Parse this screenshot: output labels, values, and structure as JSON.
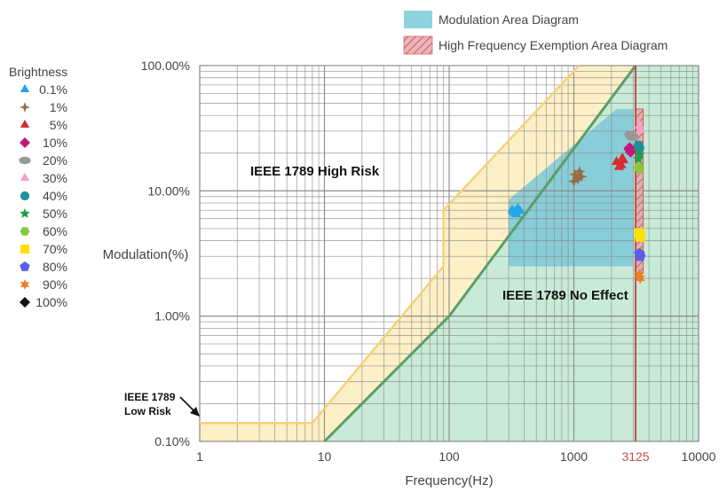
{
  "chart_data": {
    "type": "scatter",
    "x_axis": {
      "label": "Frequency(Hz)",
      "scale": "log",
      "range": [
        1,
        10000
      ],
      "ticks": [
        "1",
        "10",
        "100",
        "1000",
        "3125",
        "10000"
      ],
      "highlight_tick": "3125"
    },
    "y_axis": {
      "label": "Modulation(%)",
      "scale": "log",
      "range_percent": [
        0.1,
        100
      ],
      "ticks": [
        "0.10%",
        "1.00%",
        "10.00%",
        "100.00%"
      ]
    },
    "grid": true,
    "legend": {
      "position": "top-right",
      "items": [
        {
          "label": "Modulation Area Diagram",
          "color": "#8fd3df"
        },
        {
          "label": "High Frequency Exemption Area Diagram",
          "color": "#e8a0a8"
        }
      ]
    },
    "zones": {
      "high_risk": {
        "label": "IEEE 1789 High Risk",
        "color": "#fdf0c6",
        "edge": "#f5d27a",
        "boundary": [
          [
            1,
            0.14
          ],
          [
            8,
            0.14
          ],
          [
            90,
            2.5
          ],
          [
            90,
            7
          ],
          [
            1100,
            100
          ]
        ]
      },
      "no_effect": {
        "label": "IEEE 1789 No Effect",
        "color": "#c8ead6",
        "edge": "#5a9e6a",
        "boundary": [
          [
            10,
            0.1
          ],
          [
            100,
            1.0
          ],
          [
            3125,
            100
          ]
        ]
      },
      "low_risk": {
        "label_lines": [
          "IEEE 1789",
          "Low Risk"
        ]
      },
      "modulation_area": {
        "color": "#7dc8d8",
        "polygon": [
          [
            300,
            2.5
          ],
          [
            3000,
            2.5
          ],
          [
            3000,
            45
          ],
          [
            2200,
            45
          ],
          [
            300,
            8.5
          ]
        ]
      },
      "hf_exemption": {
        "color": "#e8a0a8",
        "x_range": [
          3125,
          3600
        ],
        "y_range": [
          2.2,
          45
        ]
      },
      "limit_line": {
        "x": 3125,
        "color": "#c0504d"
      }
    },
    "series_title": "Brightness",
    "series": [
      {
        "name": "0.1%",
        "color": "#1ea7e8",
        "marker": "triangle",
        "points": [
          [
            340,
            6.8
          ],
          [
            370,
            6.9
          ],
          [
            355,
            7.2
          ],
          [
            320,
            7.0
          ],
          [
            345,
            6.5
          ],
          [
            330,
            6.7
          ]
        ]
      },
      {
        "name": "1%",
        "color": "#9a6b49",
        "marker": "plus",
        "points": [
          [
            1020,
            13.5
          ],
          [
            1080,
            12.4
          ],
          [
            1150,
            13.0
          ],
          [
            1000,
            11.9
          ],
          [
            1110,
            14.3
          ],
          [
            1060,
            12.8
          ]
        ]
      },
      {
        "name": "5%",
        "color": "#d62d2d",
        "marker": "triangle-filled",
        "points": [
          [
            2200,
            17
          ],
          [
            2400,
            16
          ],
          [
            2500,
            17.5
          ],
          [
            2300,
            15.5
          ],
          [
            2450,
            18.2
          ]
        ]
      },
      {
        "name": "10%",
        "color": "#c2187a",
        "marker": "diamond",
        "points": [
          [
            2800,
            22
          ],
          [
            2850,
            20.5
          ],
          [
            2780,
            21.5
          ]
        ]
      },
      {
        "name": "20%",
        "color": "#999999",
        "marker": "ellipse",
        "points": [
          [
            2850,
            28
          ],
          [
            2950,
            27
          ]
        ]
      },
      {
        "name": "30%",
        "color": "#f5a0c8",
        "marker": "triangle-filled",
        "points": [
          [
            3350,
            33
          ],
          [
            3400,
            30.5
          ]
        ]
      },
      {
        "name": "40%",
        "color": "#1e90a0",
        "marker": "circle",
        "points": [
          [
            3300,
            23
          ],
          [
            3350,
            22
          ]
        ]
      },
      {
        "name": "50%",
        "color": "#1a9e4a",
        "marker": "star",
        "points": [
          [
            3300,
            18
          ],
          [
            3350,
            19.5
          ]
        ]
      },
      {
        "name": "60%",
        "color": "#8cc63e",
        "marker": "hexagon",
        "points": [
          [
            3300,
            15.5
          ],
          [
            3350,
            15
          ]
        ]
      },
      {
        "name": "70%",
        "color": "#ffe000",
        "marker": "square",
        "points": [
          [
            3350,
            4.6
          ],
          [
            3400,
            4.3
          ]
        ]
      },
      {
        "name": "80%",
        "color": "#5b5fe8",
        "marker": "pentagon",
        "points": [
          [
            3350,
            3.15
          ],
          [
            3400,
            3.0
          ]
        ]
      },
      {
        "name": "90%",
        "color": "#f07d2a",
        "marker": "star-burst",
        "points": [
          [
            3350,
            2.15
          ],
          [
            3400,
            2.0
          ]
        ]
      },
      {
        "name": "100%",
        "color": "#111111",
        "marker": "diamond",
        "points": []
      }
    ]
  }
}
